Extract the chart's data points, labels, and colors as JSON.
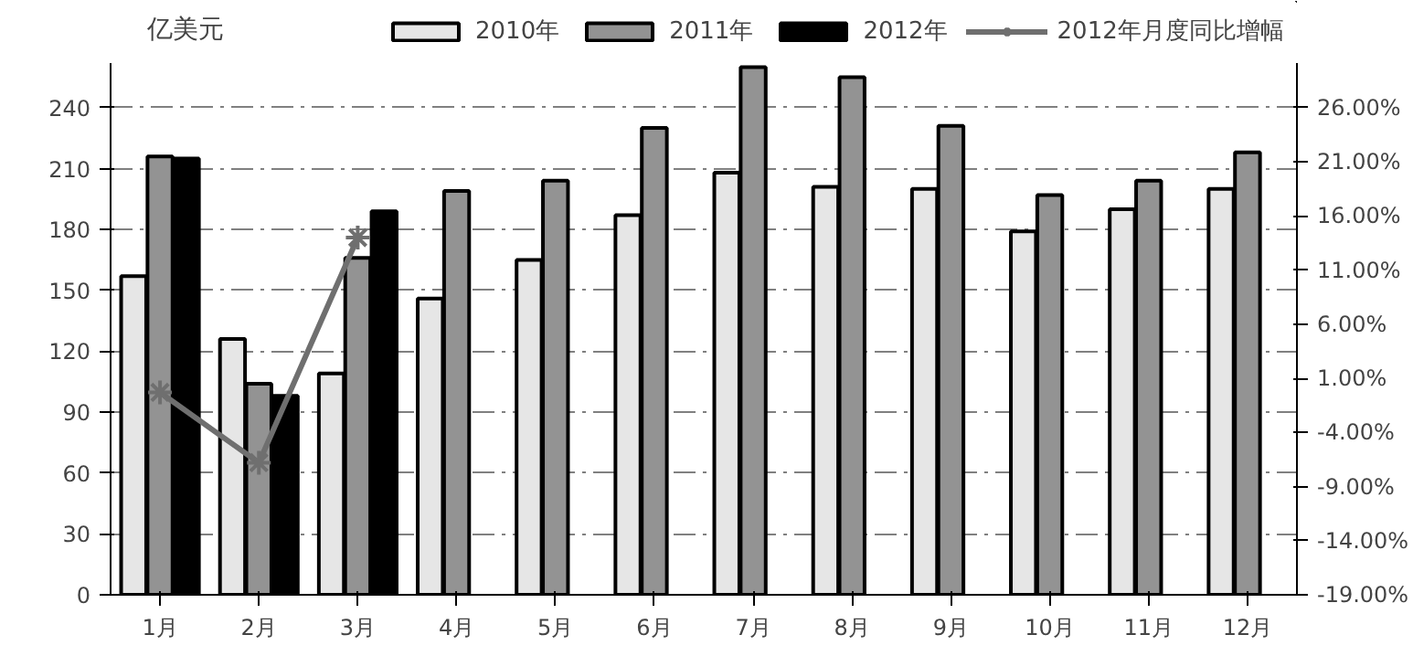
{
  "chart_data": {
    "type": "bar",
    "ylabel": "亿美元",
    "categories": [
      "1月",
      "2月",
      "3月",
      "4月",
      "5月",
      "6月",
      "7月",
      "8月",
      "9月",
      "10月",
      "11月",
      "12月"
    ],
    "series": [
      {
        "name": "2010年",
        "color": "#e6e6e6",
        "values": [
          157,
          126,
          109,
          146,
          165,
          187,
          208,
          201,
          200,
          179,
          190,
          200
        ]
      },
      {
        "name": "2011年",
        "color": "#939393",
        "values": [
          216,
          104,
          166,
          199,
          204,
          230,
          260,
          255,
          231,
          197,
          204,
          218
        ]
      },
      {
        "name": "2012年",
        "color": "#000000",
        "values": [
          215,
          98,
          189,
          null,
          null,
          null,
          null,
          null,
          null,
          null,
          null,
          null
        ]
      },
      {
        "name": "2012年月度同比增幅",
        "type": "line",
        "axis": "y2",
        "color": "#6f6f6f",
        "marker": "cross",
        "values": [
          -0.3,
          -6.8,
          14.0,
          null,
          null,
          null,
          null,
          null,
          null,
          null,
          null,
          null
        ]
      }
    ],
    "ylim": [
      0,
      262
    ],
    "yticks": [
      0,
      30,
      60,
      90,
      120,
      150,
      180,
      210,
      240
    ],
    "y2lim": [
      -19,
      30.125
    ],
    "y2ticks": [
      {
        "value": -19,
        "label": "-19.00%"
      },
      {
        "value": -14,
        "label": "-14.00%"
      },
      {
        "value": -9,
        "label": "-9.00%"
      },
      {
        "value": -4,
        "label": "-4.00%"
      },
      {
        "value": 1,
        "label": "1.00%"
      },
      {
        "value": 6,
        "label": "6.00%"
      },
      {
        "value": 11,
        "label": "11.00%"
      },
      {
        "value": 16,
        "label": "16.00%"
      },
      {
        "value": 21,
        "label": "21.00%"
      },
      {
        "value": 26,
        "label": "26.00%"
      }
    ],
    "grid": "y",
    "legend": "top"
  }
}
